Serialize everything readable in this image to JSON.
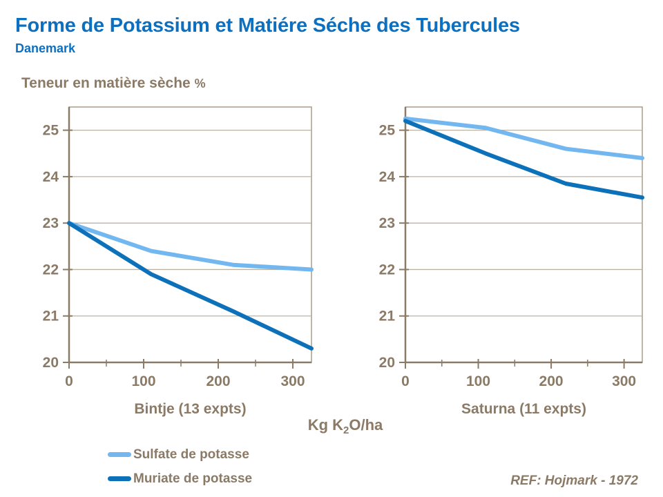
{
  "page": {
    "title": "Forme de Potassium et Matiére Séche des Tubercules",
    "subtitle": "Danemark",
    "y_axis_title": "Teneur en matière sèche",
    "y_axis_unit": "%",
    "x_axis_label": {
      "prefix": "Kg K",
      "sub": "2",
      "suffix": "O/ha"
    },
    "ref": "REF: Hojmark - 1972"
  },
  "colors": {
    "title_blue": "#0d6fc0",
    "text_brown": "#8a7a66",
    "axis_line": "#8a7a66",
    "frame": "#a79c88",
    "gridline": "#bcb2a2",
    "sulfate_blue": "#73b7f0",
    "muriate_blue": "#0d71ba",
    "background": "#ffffff"
  },
  "legend": [
    {
      "label": "Sulfate de potasse",
      "color": "#73b7f0"
    },
    {
      "label": "Muriate de potasse",
      "color": "#0d71ba"
    }
  ],
  "chart_data": [
    {
      "type": "line",
      "title": "Bintje (13 expts)",
      "x": [
        0,
        110,
        220,
        325
      ],
      "series": [
        {
          "name": "Sulfate de potasse",
          "color": "#73b7f0",
          "values": [
            23.0,
            22.4,
            22.1,
            22.0
          ]
        },
        {
          "name": "Muriate de potasse",
          "color": "#0d71ba",
          "values": [
            23.0,
            21.9,
            21.1,
            20.3
          ]
        }
      ],
      "xlim": [
        0,
        325
      ],
      "ylim": [
        20,
        25.5
      ],
      "yticks": [
        20,
        21,
        22,
        23,
        24,
        25
      ],
      "xticks_major": [
        0,
        100,
        200,
        300
      ],
      "xticks_minor": [
        50,
        150,
        250
      ],
      "grid": "horizontal",
      "legend_position": "below"
    },
    {
      "type": "line",
      "title": "Saturna (11 expts)",
      "x": [
        0,
        110,
        220,
        325
      ],
      "series": [
        {
          "name": "Sulfate de potasse",
          "color": "#73b7f0",
          "values": [
            25.25,
            25.05,
            24.6,
            24.4
          ]
        },
        {
          "name": "Muriate de potasse",
          "color": "#0d71ba",
          "values": [
            25.2,
            24.5,
            23.85,
            23.55
          ]
        }
      ],
      "xlim": [
        0,
        325
      ],
      "ylim": [
        20,
        25.5
      ],
      "yticks": [
        20,
        21,
        22,
        23,
        24,
        25
      ],
      "xticks_major": [
        0,
        100,
        200,
        300
      ],
      "xticks_minor": [
        50,
        150,
        250
      ],
      "grid": "horizontal",
      "legend_position": "below"
    }
  ]
}
